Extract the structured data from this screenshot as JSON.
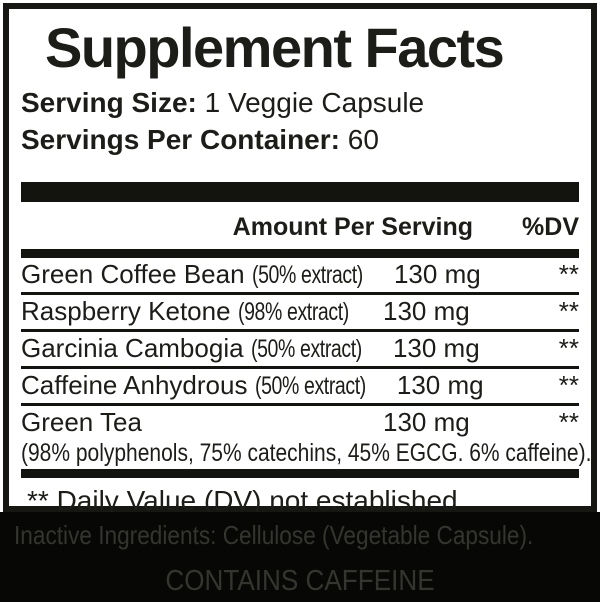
{
  "panel": {
    "title": "Supplement Facts",
    "serving_size_label": "Serving Size:",
    "serving_size_value": " 1 Veggie Capsule",
    "servings_label": "Servings Per Container:",
    "servings_value": " 60",
    "header": {
      "amount": "Amount Per Serving",
      "dv": "%DV"
    },
    "rows": [
      {
        "name": "Green Coffee Bean ",
        "detail": "(50% extract)",
        "amount": "130 mg",
        "dv": "**"
      },
      {
        "name": "Raspberry Ketone ",
        "detail": "(98% extract)",
        "amount": "130 mg",
        "dv": "**"
      },
      {
        "name": "Garcinia Cambogia ",
        "detail": "(50% extract)",
        "amount": "130 mg",
        "dv": "**"
      },
      {
        "name": "Caffeine Anhydrous ",
        "detail": "(50% extract)",
        "amount": "130 mg",
        "dv": "**"
      },
      {
        "name": "Green Tea",
        "detail": "",
        "amount": "130 mg",
        "dv": "**",
        "subnote": "(98% polyphenols, 75% catechins, 45% EGCG. 6% caffeine)."
      }
    ],
    "footnote": "** Daily Value (DV) not established"
  },
  "footer": {
    "inactive_ingredients": "Inactive Ingredients: Cellulose (Vegetable Capsule).",
    "caffeine_warning": "CONTAINS CAFFEINE"
  },
  "colors": {
    "panel_border": "#161613",
    "text": "#1c1c18",
    "band_background": "#070706",
    "band_text": "#35352f"
  }
}
